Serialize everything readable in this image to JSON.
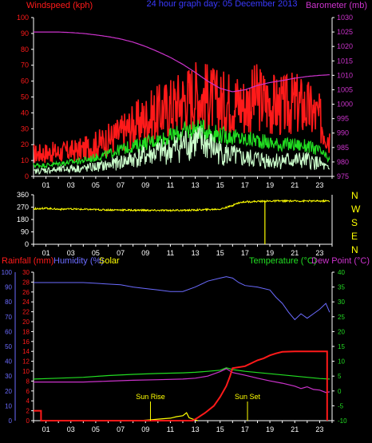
{
  "colors": {
    "background": "#000000",
    "axis": "#ffffff",
    "wind_max": "#ff1a1a",
    "wind_avg": "#22dd22",
    "wind_low": "#ccffcc",
    "pressure": "#cc33cc",
    "direction": "#ffff00",
    "compass_text": "#ffff00",
    "rain": "#ff1a1a",
    "humidity": "#6b6bff",
    "solar": "#ffff00",
    "temperature": "#22dd22",
    "dew_point": "#cc33cc",
    "sun_marker": "#ffff00",
    "title": "#3a3aff",
    "right_title": "#cc33cc"
  },
  "header": {
    "wind_label": "Windspeed (kph)",
    "title": "24 hour graph day: 05 December 2013",
    "baro_label": "Barometer (mb)"
  },
  "compass": [
    "N",
    "W",
    "S",
    "E",
    "N"
  ],
  "bottom_header": {
    "rain_label": "Rainfall (mm)",
    "humidity_label": "Humidity (%)",
    "solar_label": "Solar",
    "temp_label": "Temperature (°C)",
    "dew_label": "Dew Point (°C)"
  },
  "chart_data": [
    {
      "type": "line",
      "title": "24 hour graph day: 05 December 2013",
      "x_ticks": [
        "01",
        "03",
        "05",
        "07",
        "09",
        "11",
        "13",
        "15",
        "17",
        "19",
        "21",
        "23"
      ],
      "x_range": [
        0,
        24
      ],
      "y_left": {
        "label": "Windspeed (kph)",
        "ticks": [
          0,
          10,
          20,
          30,
          40,
          50,
          60,
          70,
          80,
          90,
          100
        ],
        "range": [
          0,
          100
        ]
      },
      "y_right": {
        "label": "Barometer (mb)",
        "ticks": [
          975,
          980,
          985,
          990,
          995,
          1000,
          1005,
          1010,
          1015,
          1020,
          1025,
          1030
        ],
        "range": [
          975,
          1030
        ]
      },
      "series": [
        {
          "name": "Barometer (mb)",
          "axis": "right",
          "x": [
            0,
            1,
            2,
            3,
            4,
            5,
            6,
            7,
            8,
            9,
            10,
            11,
            12,
            13,
            14,
            15,
            16,
            17,
            18,
            19,
            20,
            21,
            22,
            23,
            23.8
          ],
          "values": [
            1025,
            1025,
            1025,
            1024.8,
            1024.5,
            1024,
            1023.4,
            1022.6,
            1021.5,
            1020,
            1018.2,
            1016.2,
            1013.8,
            1011,
            1008,
            1005.5,
            1004.3,
            1005,
            1006.5,
            1007.5,
            1008.2,
            1009,
            1009.6,
            1010,
            1010.2
          ]
        },
        {
          "name": "",
          "axis": "left",
          "x": [
            0,
            1,
            2,
            3,
            4,
            5,
            6,
            7,
            8,
            9,
            10,
            11,
            12,
            13,
            14,
            15,
            16,
            17,
            18,
            19,
            20,
            21,
            22,
            23,
            23.8
          ],
          "values": [
            14,
            15,
            15,
            16,
            17,
            20,
            23,
            27,
            32,
            36,
            40,
            44,
            48,
            52,
            50,
            46,
            48,
            45,
            50,
            46,
            44,
            46,
            43,
            36,
            24
          ]
        },
        {
          "name": "",
          "axis": "left",
          "x": [
            0,
            1,
            2,
            3,
            4,
            5,
            6,
            7,
            8,
            9,
            10,
            11,
            12,
            13,
            14,
            15,
            16,
            17,
            18,
            19,
            20,
            21,
            22,
            23,
            23.8
          ],
          "values": [
            7,
            7,
            8,
            9,
            10,
            12,
            14,
            17,
            19,
            21,
            23,
            25,
            28,
            30,
            29,
            26,
            25,
            23,
            23,
            21,
            20,
            20,
            19,
            16,
            10
          ]
        },
        {
          "name": "",
          "axis": "left",
          "x": [
            0,
            1,
            2,
            3,
            4,
            5,
            6,
            7,
            8,
            9,
            10,
            11,
            12,
            13,
            14,
            15,
            16,
            17,
            18,
            19,
            20,
            21,
            22,
            23,
            23.8
          ],
          "values": [
            3,
            4,
            4,
            5,
            5,
            6,
            7,
            9,
            11,
            13,
            15,
            16,
            20,
            22,
            20,
            15,
            13,
            11,
            11,
            10,
            10,
            10,
            10,
            8,
            4
          ]
        }
      ]
    },
    {
      "type": "line",
      "x_ticks": [
        "01",
        "03",
        "05",
        "07",
        "09",
        "11",
        "13",
        "15",
        "17",
        "19",
        "21",
        "23"
      ],
      "x_range": [
        0,
        24
      ],
      "y_left": {
        "ticks": [
          0,
          90,
          180,
          270,
          360
        ],
        "range": [
          0,
          360
        ]
      },
      "y_right": {
        "labels": [
          "N",
          "W",
          "S",
          "E",
          "N"
        ]
      },
      "series": [
        {
          "name": "",
          "axis": "left",
          "x": [
            0,
            1,
            2,
            3,
            4,
            5,
            6,
            7,
            8,
            9,
            10,
            11,
            12,
            13,
            14,
            15,
            15.8,
            16.5,
            17,
            18,
            19,
            20,
            21,
            22,
            23,
            23.8
          ],
          "values": [
            258,
            262,
            255,
            256,
            254,
            252,
            250,
            250,
            248,
            247,
            246,
            247,
            247,
            249,
            252,
            256,
            275,
            302,
            308,
            312,
            314,
            315,
            314,
            315,
            314,
            315
          ]
        }
      ],
      "annotations": [
        {
          "type": "spike",
          "x": 18.6,
          "from": 320,
          "to": 0
        }
      ]
    },
    {
      "type": "line",
      "x_ticks": [
        "01",
        "03",
        "05",
        "07",
        "09",
        "11",
        "13",
        "15",
        "17",
        "19",
        "21",
        "23"
      ],
      "x_range": [
        0,
        24
      ],
      "axes": {
        "humidity": {
          "label": "Humidity (%)",
          "ticks": [
            0,
            10,
            20,
            30,
            40,
            50,
            60,
            70,
            80,
            90,
            100
          ],
          "range": [
            0,
            100
          ]
        },
        "rainfall": {
          "label": "Rainfall (mm)",
          "ticks": [
            0,
            2,
            4,
            6,
            8,
            10,
            12,
            14,
            16,
            18,
            20,
            22,
            24,
            26,
            28,
            30
          ],
          "range": [
            0,
            30
          ]
        },
        "temperature": {
          "label": "Temperature (°C)",
          "ticks": [
            -10,
            -5,
            0,
            5,
            10,
            15,
            20,
            25,
            30,
            35,
            40
          ],
          "range": [
            -10,
            40
          ]
        }
      },
      "series": [
        {
          "name": "Humidity (%)",
          "axis": "humidity",
          "x": [
            0,
            1,
            2,
            3,
            4,
            5,
            6,
            7,
            8,
            9,
            10,
            11,
            12,
            13,
            14,
            15,
            15.5,
            16,
            16.5,
            17,
            18,
            19,
            19.5,
            20,
            20.5,
            21,
            21.5,
            22,
            22.5,
            23,
            23.5,
            23.8
          ],
          "values": [
            93,
            93,
            93,
            93,
            93,
            92.5,
            92,
            91.5,
            90,
            89,
            88,
            87,
            87,
            90,
            94,
            96,
            97,
            96,
            93,
            91,
            90,
            88,
            83,
            79,
            73,
            68,
            72,
            69,
            72,
            75,
            79,
            73
          ]
        },
        {
          "name": "Rainfall (mm)",
          "axis": "rainfall",
          "x": [
            0,
            0.6,
            0.6,
            12.8,
            13.2,
            13.8,
            14.5,
            15,
            15.5,
            15.8,
            16,
            17,
            17.5,
            18,
            18.5,
            19,
            19.5,
            20,
            21,
            22,
            23,
            23.6,
            23.6
          ],
          "values": [
            2,
            2,
            0,
            0,
            0.6,
            1.6,
            3,
            4.8,
            7,
            9,
            10.6,
            11,
            11.6,
            12.2,
            12.6,
            13.2,
            13.6,
            13.9,
            14,
            14,
            14,
            14,
            0
          ]
        },
        {
          "name": "Temperature (°C)",
          "axis": "temperature",
          "x": [
            0,
            2,
            4,
            6,
            8,
            10,
            12,
            13,
            14,
            15,
            15.5,
            16,
            17,
            18,
            19,
            20,
            21,
            22,
            23,
            23.8
          ],
          "values": [
            4,
            4.3,
            4.6,
            5.2,
            5.6,
            5.9,
            6.1,
            6.3,
            6.6,
            7,
            7.8,
            7.2,
            6.6,
            6.2,
            5.8,
            5.4,
            5,
            4.6,
            4.2,
            4
          ]
        },
        {
          "name": "Dew Point (°C)",
          "axis": "temperature",
          "x": [
            0,
            2,
            4,
            6,
            8,
            10,
            12,
            13,
            14,
            15,
            15.5,
            16,
            17,
            18,
            19,
            20,
            21,
            21.5,
            22,
            22.5,
            23,
            23.5,
            23.8
          ],
          "values": [
            3,
            3,
            3,
            3.3,
            3.6,
            3.8,
            4,
            4.3,
            5,
            6.5,
            7.5,
            6.2,
            5.3,
            4.3,
            3.4,
            2.6,
            1.6,
            0.8,
            1.4,
            0.5,
            0.3,
            -0.5,
            -0.3
          ]
        },
        {
          "name": "Solar",
          "axis": "rainfall",
          "x": [
            8.5,
            9.5,
            10,
            11,
            11.5,
            12,
            12.3,
            12.5,
            12.8,
            13.2
          ],
          "values": [
            0,
            0.2,
            0.3,
            0.5,
            0.8,
            1.0,
            1.6,
            0.6,
            0.3,
            0
          ]
        }
      ],
      "annotations": [
        {
          "label": "Sun Rise",
          "x": 9.4
        },
        {
          "label": "Sun Set",
          "x": 17.2
        }
      ]
    }
  ]
}
